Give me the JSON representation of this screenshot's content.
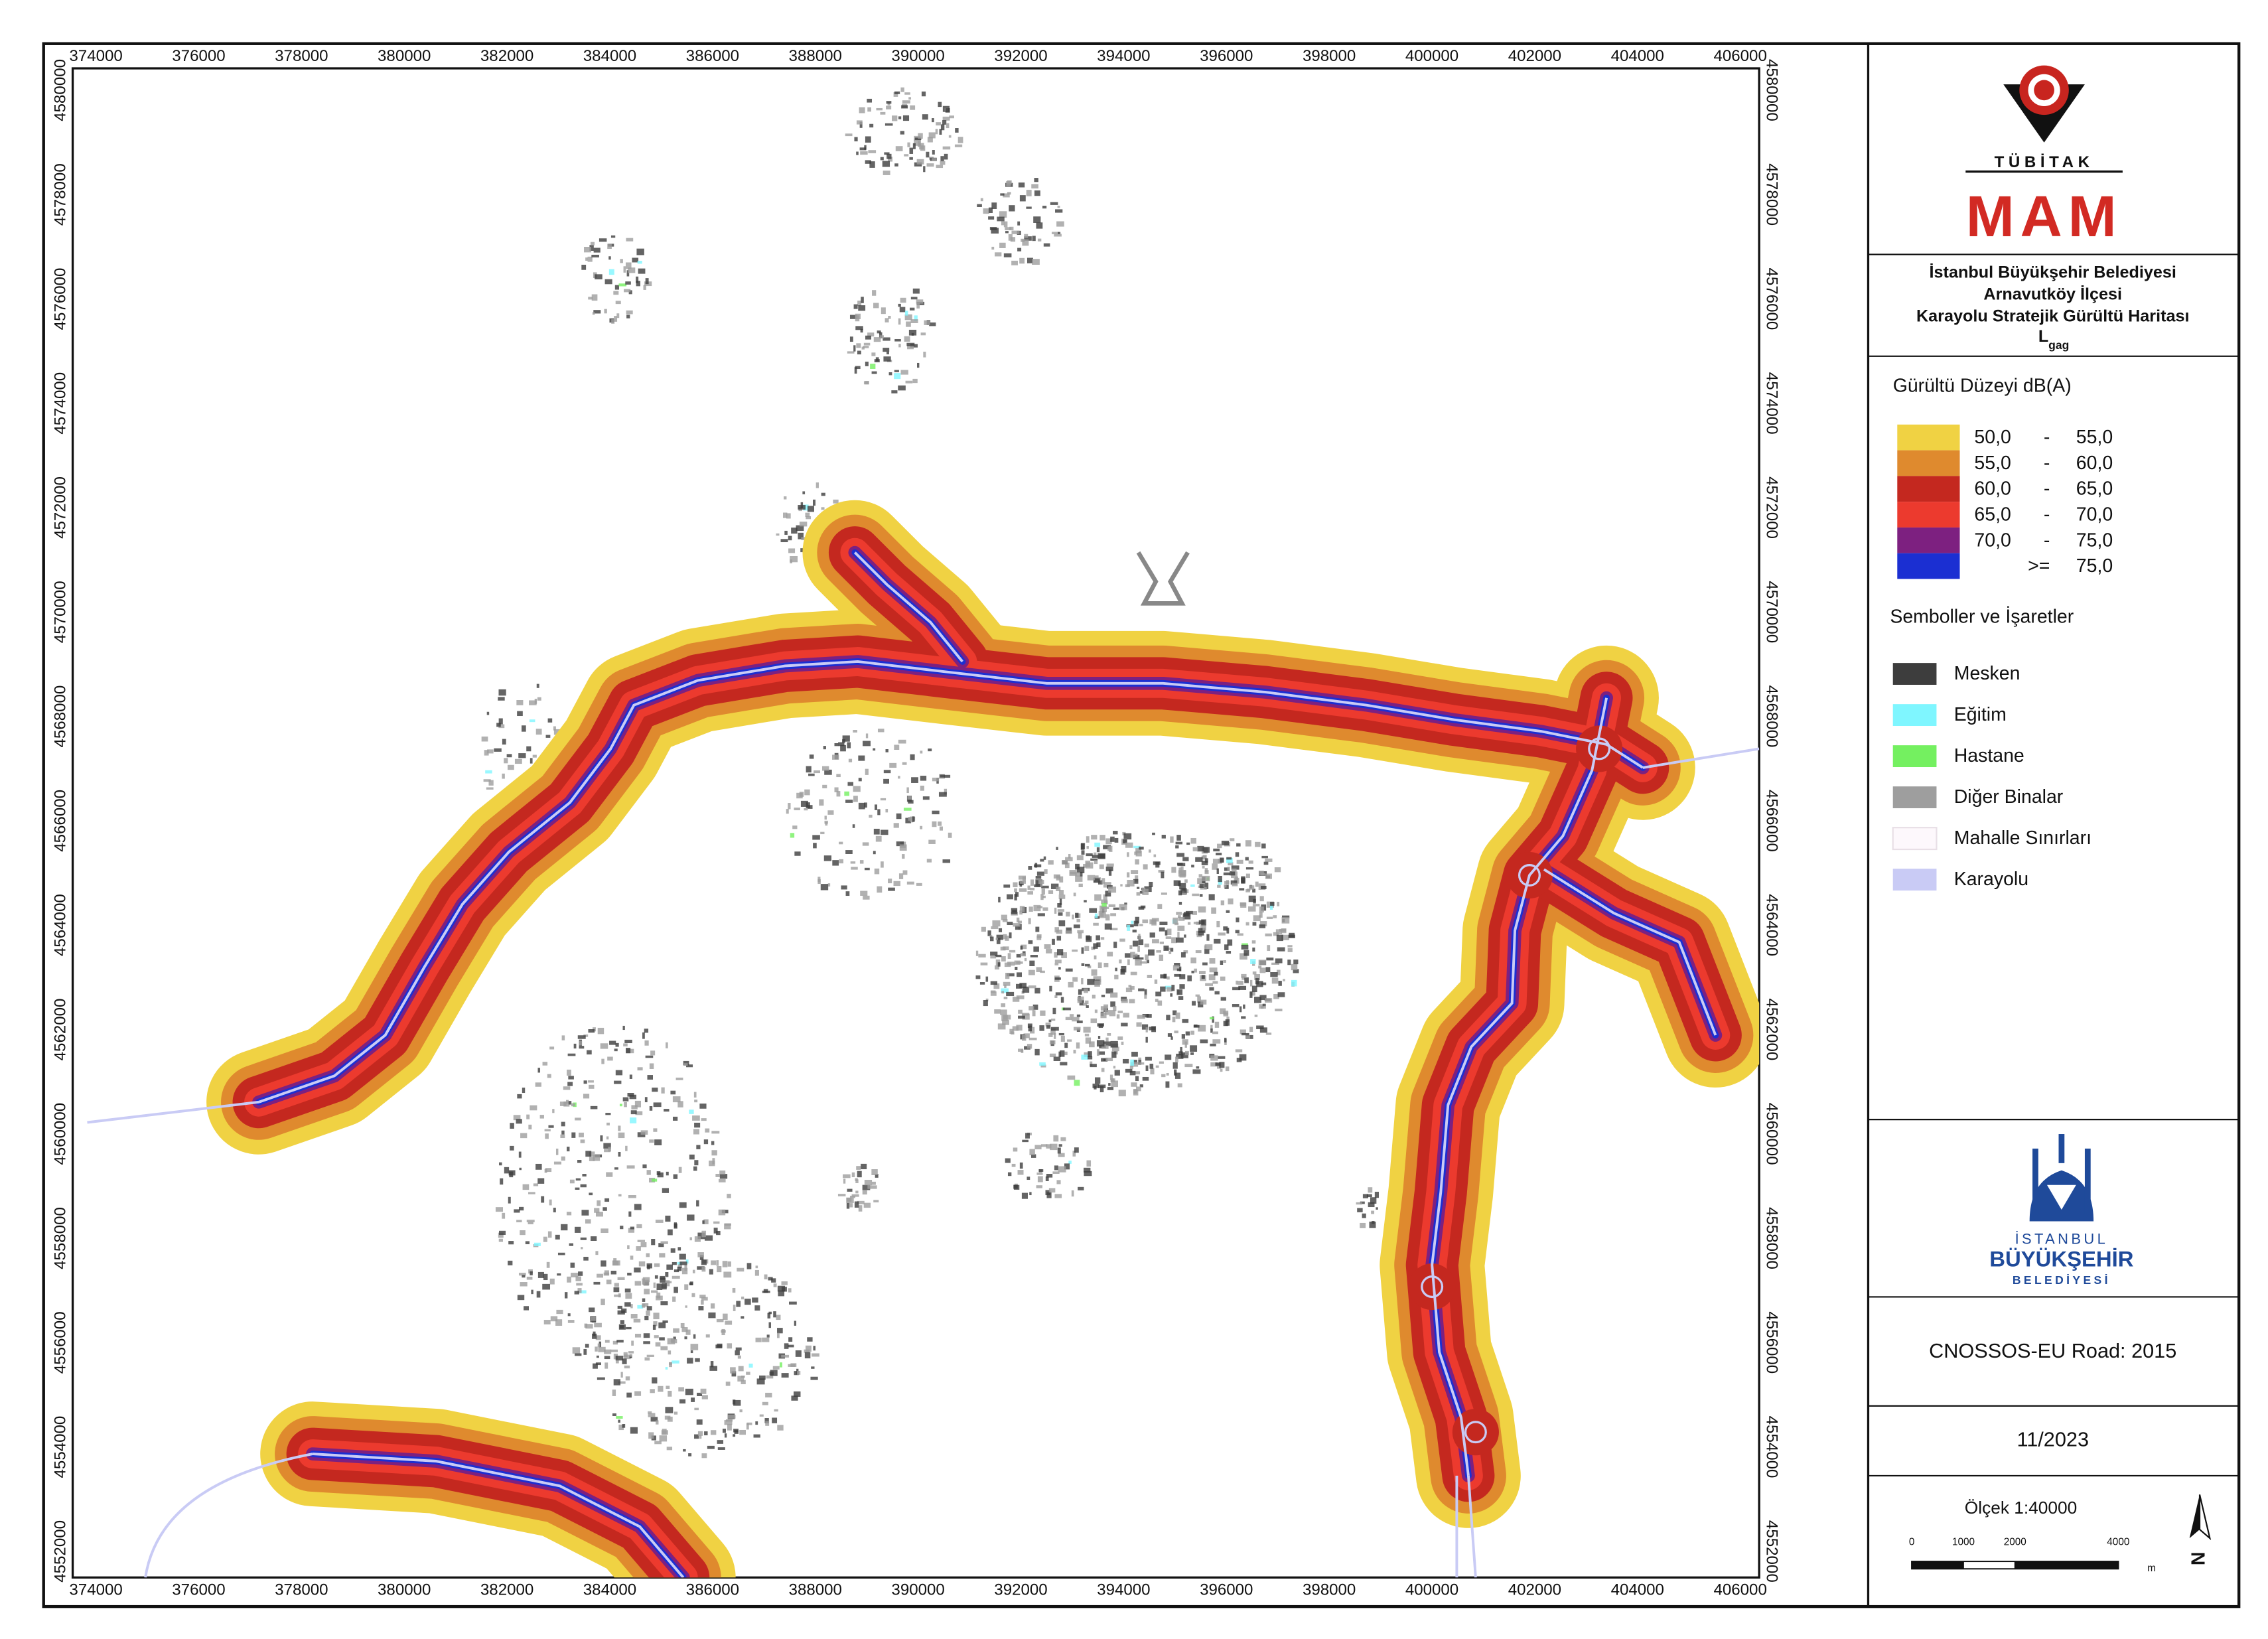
{
  "map": {
    "xticks": [
      374000,
      376000,
      378000,
      380000,
      382000,
      384000,
      386000,
      388000,
      390000,
      392000,
      394000,
      396000,
      398000,
      400000,
      402000,
      404000,
      406000
    ],
    "yticks": [
      4552000,
      4554000,
      4556000,
      4558000,
      4560000,
      4562000,
      4564000,
      4566000,
      4568000,
      4570000,
      4572000,
      4574000,
      4576000,
      4578000,
      4580000
    ]
  },
  "logo_top": {
    "org": "TÜBİTAK",
    "unit": "MAM"
  },
  "title": {
    "lines": [
      "İstanbul Büyükşehir Belediyesi",
      "Arnavutköy İlçesi",
      "Karayolu Stratejik Gürültü Haritası"
    ],
    "index": "L",
    "index_sub": "gag"
  },
  "noise_legend": {
    "title": "Gürültü Düzeyi dB(A)",
    "items": [
      {
        "low": "50,0",
        "sep": "-",
        "high": "55,0",
        "color": "#f0d243"
      },
      {
        "low": "55,0",
        "sep": "-",
        "high": "60,0",
        "color": "#df8a2e"
      },
      {
        "low": "60,0",
        "sep": "-",
        "high": "65,0",
        "color": "#c4281f"
      },
      {
        "low": "65,0",
        "sep": "-",
        "high": "70,0",
        "color": "#ec3a2e"
      },
      {
        "low": "70,0",
        "sep": "-",
        "high": "75,0",
        "color": "#7d2080"
      },
      {
        "sep": ">=",
        "high": "75,0",
        "color": "#1b2fd2"
      }
    ]
  },
  "symbols": {
    "title": "Semboller ve İşaretler",
    "items": [
      {
        "label": "Mesken",
        "color": "#3d3d3d"
      },
      {
        "label": "Eğitim",
        "color": "#7ff6ff"
      },
      {
        "label": "Hastane",
        "color": "#74f060"
      },
      {
        "label": "Diğer Binalar",
        "color": "#9e9e9e"
      },
      {
        "label": "Mahalle Sınırları",
        "color": "#fdf8fc"
      },
      {
        "label": "Karayolu",
        "color": "#c9cbf5"
      }
    ]
  },
  "logo_bottom": {
    "line1": "İSTANBUL",
    "line2": "BÜYÜKŞEHİR",
    "line3": "BELEDİYESİ"
  },
  "method": "CNOSSOS-EU Road: 2015",
  "date": "11/2023",
  "scale": {
    "title": "Ölçek 1:40000",
    "ticks": [
      0,
      1000,
      2000,
      4000
    ],
    "unit": "m"
  },
  "north": "N"
}
